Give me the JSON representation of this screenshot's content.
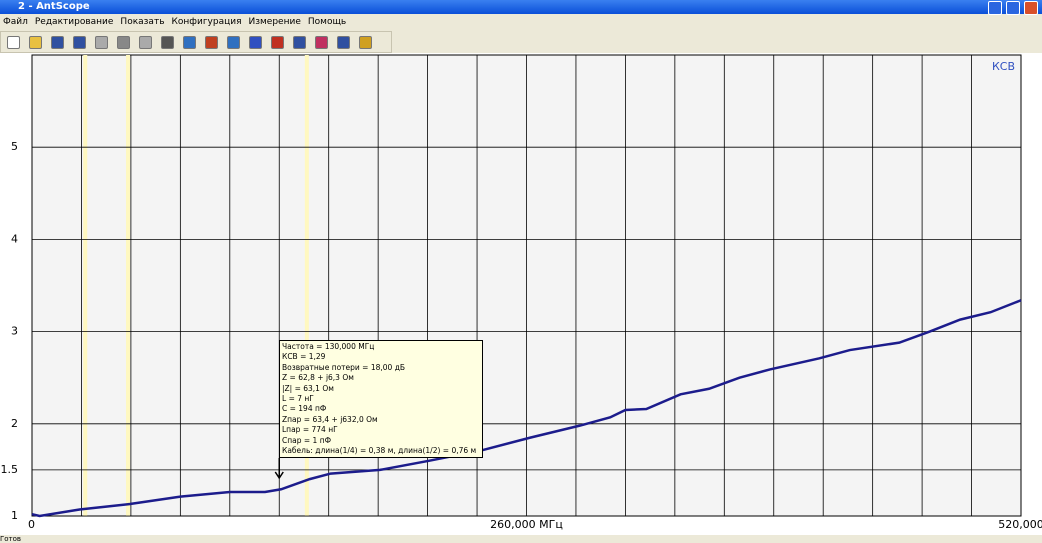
{
  "window": {
    "title": "2 - AntScope"
  },
  "menu": [
    "Файл",
    "Редактирование",
    "Показать",
    "Конфигурация",
    "Измерение",
    "Помощь"
  ],
  "chart_data": {
    "type": "line",
    "series_label": "КСВ",
    "x": [
      0,
      4,
      25,
      51.5,
      78,
      104,
      122.5,
      131,
      146,
      157,
      183,
      209,
      236,
      262,
      288,
      304,
      312,
      323,
      341,
      356,
      372,
      388,
      414,
      430,
      456,
      472,
      488,
      504,
      520
    ],
    "series": [
      {
        "name": "КСВ",
        "color": "#1c1c8c",
        "values": [
          1.02,
          1.0,
          1.07,
          1.13,
          1.21,
          1.26,
          1.26,
          1.29,
          1.4,
          1.46,
          1.5,
          1.6,
          1.71,
          1.85,
          1.98,
          2.07,
          2.15,
          2.16,
          2.32,
          2.38,
          2.5,
          2.59,
          2.71,
          2.8,
          2.88,
          3.0,
          3.13,
          3.21,
          3.34
        ]
      }
    ],
    "xlim": [
      0,
      520
    ],
    "xticks": [
      0,
      {
        "value": 260,
        "label": "260,000 МГц"
      },
      {
        "value": 520,
        "label": "520,000"
      }
    ],
    "ylim": [
      1,
      6
    ],
    "yticks": [
      1,
      1.5,
      2,
      3,
      4,
      5
    ],
    "grid": true,
    "band_markers": [
      28,
      50.5,
      144.5
    ],
    "marker": 130
  },
  "tooltip": [
    "Частота = 130,000 МГц",
    "КСВ = 1,29",
    "Возвратные потери = 18,00 дБ",
    "Z = 62,8 + j6,3 Ом",
    "|Z| = 63,1 Ом",
    "L = 7 нГ",
    "C = 194 пФ",
    "Zпар = 63,4 + j632,0 Ом",
    "Lпар = 774 нГ",
    "Cпар = 1 пФ",
    "Кабель: длина(1/4) = 0,38 м, длина(1/2) = 0,76 м"
  ],
  "status": "Готов"
}
